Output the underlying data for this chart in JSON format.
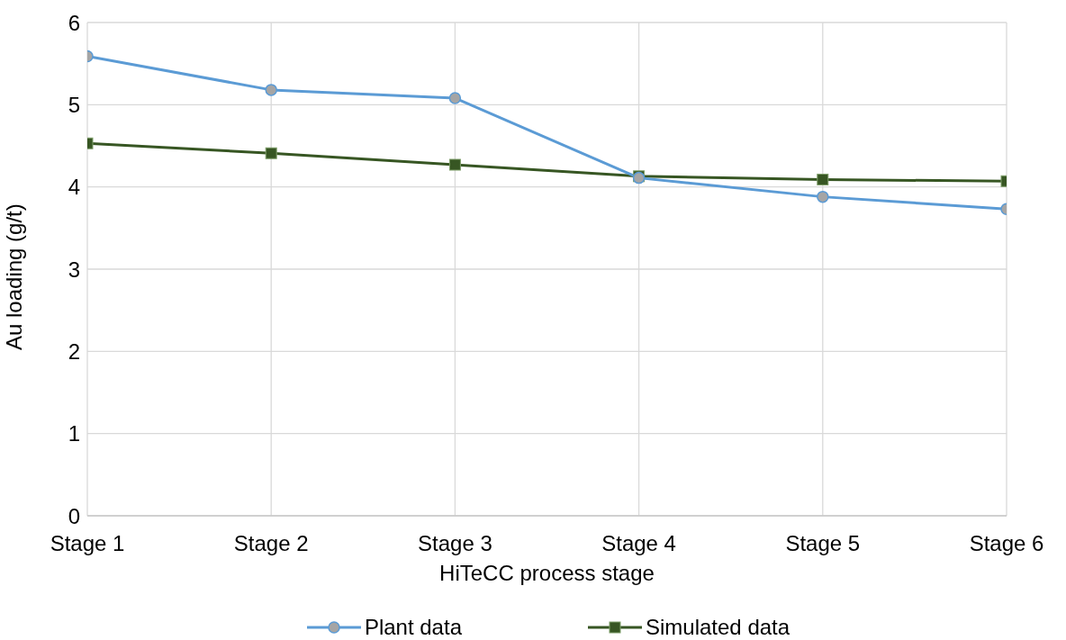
{
  "chart_data": {
    "type": "line",
    "xlabel": "HiTeCC process stage",
    "ylabel": "Au loading (g/t)",
    "categories": [
      "Stage 1",
      "Stage 2",
      "Stage 3",
      "Stage 4",
      "Stage 5",
      "Stage 6"
    ],
    "series": [
      {
        "name": "Plant data",
        "color": "#5b9bd5",
        "marker": "circle",
        "values": [
          5.59,
          5.18,
          5.08,
          4.11,
          3.88,
          3.73
        ]
      },
      {
        "name": "Simulated data",
        "color": "#375623",
        "marker": "square",
        "values": [
          4.53,
          4.41,
          4.27,
          4.13,
          4.09,
          4.07
        ]
      }
    ],
    "ylim": [
      0,
      6
    ],
    "yticks": [
      0,
      1,
      2,
      3,
      4,
      5,
      6
    ],
    "grid": true,
    "legend": "bottom"
  }
}
